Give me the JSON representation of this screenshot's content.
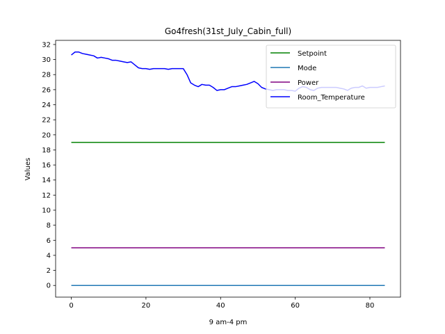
{
  "chart_data": {
    "type": "line",
    "title": "Go4fresh(31st_July_Cabin_full)",
    "xlabel": "9 am-4 pm",
    "ylabel": "Values",
    "xlim": [
      -4.2,
      88.2
    ],
    "ylim": [
      -1.55,
      32.55
    ],
    "xticks": [
      0,
      20,
      40,
      60,
      80
    ],
    "yticks": [
      0,
      2,
      4,
      6,
      8,
      10,
      12,
      14,
      16,
      18,
      20,
      22,
      24,
      26,
      28,
      30,
      32
    ],
    "grid": false,
    "legend_position": "top-right",
    "series": [
      {
        "name": "Setpoint",
        "color": "#008000",
        "x_start": 0,
        "values": [
          19,
          19
        ],
        "x": [
          0,
          84
        ]
      },
      {
        "name": "Mode",
        "color": "#1f77b4",
        "x": [
          0,
          84
        ],
        "values": [
          0,
          0
        ]
      },
      {
        "name": "Power",
        "color": "#800080",
        "x": [
          0,
          84
        ],
        "values": [
          5,
          5
        ]
      },
      {
        "name": "Room_Temperature",
        "color": "#0000ff",
        "x_start": 0,
        "values": [
          30.6,
          31.0,
          31.0,
          30.8,
          30.7,
          30.6,
          30.5,
          30.2,
          30.3,
          30.2,
          30.1,
          29.9,
          29.9,
          29.8,
          29.7,
          29.6,
          29.7,
          29.3,
          28.9,
          28.8,
          28.8,
          28.7,
          28.8,
          28.8,
          28.8,
          28.8,
          28.7,
          28.8,
          28.8,
          28.8,
          28.8,
          28.0,
          26.9,
          26.6,
          26.4,
          26.7,
          26.6,
          26.6,
          26.3,
          25.9,
          26.0,
          26.0,
          26.2,
          26.4,
          26.4,
          26.5,
          26.6,
          26.7,
          26.9,
          27.1,
          26.8,
          26.3,
          26.1,
          26.0,
          25.9,
          26.0,
          26.0,
          26.0,
          25.9,
          25.9,
          25.8,
          26.2,
          26.4,
          26.3,
          26.0,
          25.9,
          26.2,
          26.3,
          26.3,
          26.3,
          26.3,
          26.3,
          26.2,
          26.1,
          25.9,
          26.2,
          26.3,
          26.3,
          26.5,
          26.2,
          26.3,
          26.3,
          26.3,
          26.4,
          26.5
        ]
      }
    ]
  }
}
